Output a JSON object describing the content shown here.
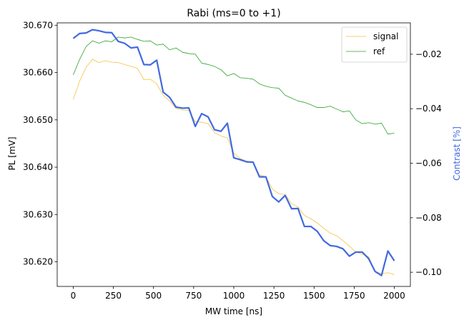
{
  "chart_data": {
    "type": "line",
    "title": "Rabi (ms=0 to +1)",
    "xlabel": "MW time [ns]",
    "ylabel_left": "PL [mV]",
    "ylabel_right": "Contrast [%]",
    "xlim": [
      -100,
      2100
    ],
    "ylim_left": [
      30.6148,
      30.6705
    ],
    "ylim_right": [
      -0.1052,
      -0.0085
    ],
    "x_ticks": [
      0,
      250,
      500,
      750,
      1000,
      1250,
      1500,
      1750,
      2000
    ],
    "y_left_ticks": [
      30.62,
      30.63,
      30.64,
      30.65,
      30.66,
      30.67
    ],
    "y_left_tick_labels": [
      "30.620",
      "30.630",
      "30.640",
      "30.650",
      "30.660",
      "30.670"
    ],
    "y_right_ticks": [
      -0.1,
      -0.08,
      -0.06,
      -0.04,
      -0.02
    ],
    "y_right_tick_labels": [
      "−0.10",
      "−0.08",
      "−0.06",
      "−0.04",
      "−0.02"
    ],
    "legend_position": "top-right",
    "grid": false,
    "x": [
      0,
      40,
      80,
      120,
      160,
      200,
      240,
      280,
      320,
      360,
      400,
      440,
      480,
      520,
      560,
      600,
      640,
      680,
      720,
      760,
      800,
      840,
      880,
      920,
      960,
      1000,
      1040,
      1080,
      1120,
      1160,
      1200,
      1240,
      1280,
      1320,
      1360,
      1400,
      1440,
      1480,
      1520,
      1560,
      1600,
      1640,
      1680,
      1720,
      1760,
      1800,
      1840,
      1880,
      1920,
      1960,
      2000
    ],
    "series": [
      {
        "name": "signal",
        "axis": "left",
        "color": "#f5c242",
        "stroke_width": 0.8,
        "values": [
          30.6543,
          30.6582,
          30.6611,
          30.6628,
          30.6621,
          30.6625,
          30.6622,
          30.6621,
          30.6617,
          30.6613,
          30.6609,
          30.6585,
          30.6586,
          30.6576,
          30.6552,
          30.654,
          30.6524,
          30.6521,
          30.652,
          30.6496,
          30.6495,
          30.6492,
          30.6473,
          30.6466,
          30.6462,
          30.643,
          30.6418,
          30.6413,
          30.641,
          30.6383,
          30.638,
          30.6354,
          30.6344,
          30.6342,
          30.6323,
          30.6316,
          30.6298,
          30.6291,
          30.6282,
          30.6271,
          30.6261,
          30.6255,
          30.6245,
          30.6233,
          30.6221,
          30.6216,
          30.6211,
          30.618,
          30.6175,
          30.6177,
          30.6173
        ]
      },
      {
        "name": "ref",
        "axis": "left",
        "color": "#2ca02c",
        "stroke_width": 0.8,
        "values": [
          30.6595,
          30.6628,
          30.6655,
          30.6667,
          30.6662,
          30.6667,
          30.6665,
          30.6675,
          30.6673,
          30.6675,
          30.667,
          30.6666,
          30.6667,
          30.6658,
          30.666,
          30.6648,
          30.6652,
          30.6643,
          30.664,
          30.6639,
          30.662,
          30.6617,
          30.6613,
          30.6606,
          30.6593,
          30.6598,
          30.6589,
          30.6588,
          30.6586,
          30.6576,
          30.6571,
          30.6568,
          30.6567,
          30.6552,
          30.6546,
          30.654,
          30.6537,
          30.6532,
          30.6526,
          30.6526,
          30.6529,
          30.6523,
          30.6517,
          30.6519,
          30.65,
          30.6492,
          30.6494,
          30.6491,
          30.6493,
          30.647,
          30.6472
        ]
      },
      {
        "name": "contrast",
        "axis": "right",
        "color": "#4169e1",
        "stroke_width": 2.2,
        "values": [
          -0.0142,
          -0.0124,
          -0.0122,
          -0.011,
          -0.0114,
          -0.012,
          -0.0121,
          -0.0153,
          -0.016,
          -0.0177,
          -0.0174,
          -0.0238,
          -0.0239,
          -0.0222,
          -0.0339,
          -0.0358,
          -0.0394,
          -0.0398,
          -0.0397,
          -0.0465,
          -0.0418,
          -0.043,
          -0.0477,
          -0.0483,
          -0.0453,
          -0.058,
          -0.0587,
          -0.0595,
          -0.0596,
          -0.065,
          -0.065,
          -0.0722,
          -0.0742,
          -0.0718,
          -0.0767,
          -0.0766,
          -0.0832,
          -0.0832,
          -0.085,
          -0.0884,
          -0.0902,
          -0.0905,
          -0.0914,
          -0.0941,
          -0.0926,
          -0.0926,
          -0.095,
          -0.0997,
          -0.1012,
          -0.0922,
          -0.0958
        ]
      }
    ]
  }
}
